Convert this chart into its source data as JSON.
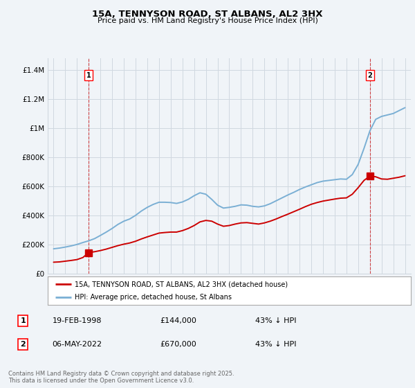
{
  "title": "15A, TENNYSON ROAD, ST ALBANS, AL2 3HX",
  "subtitle": "Price paid vs. HM Land Registry's House Price Index (HPI)",
  "ylabel_ticks": [
    "£0",
    "£200K",
    "£400K",
    "£600K",
    "£800K",
    "£1M",
    "£1.2M",
    "£1.4M"
  ],
  "ytick_values": [
    0,
    200000,
    400000,
    600000,
    800000,
    1000000,
    1200000,
    1400000
  ],
  "ylim": [
    0,
    1480000
  ],
  "xlim_start": 1994.5,
  "xlim_end": 2025.5,
  "sale1_date": "19-FEB-1998",
  "sale1_price": 144000,
  "sale1_hpi_text": "43% ↓ HPI",
  "sale2_date": "06-MAY-2022",
  "sale2_price": 670000,
  "sale2_hpi_text": "43% ↓ HPI",
  "legend_line1": "15A, TENNYSON ROAD, ST ALBANS, AL2 3HX (detached house)",
  "legend_line2": "HPI: Average price, detached house, St Albans",
  "footer": "Contains HM Land Registry data © Crown copyright and database right 2025.\nThis data is licensed under the Open Government Licence v3.0.",
  "line_color_red": "#cc0000",
  "line_color_blue": "#7aafd4",
  "background_color": "#f0f4f8",
  "grid_color": "#d0d8e0",
  "hpi_line": {
    "x": [
      1995.0,
      1995.5,
      1996.0,
      1996.5,
      1997.0,
      1997.5,
      1998.0,
      1998.5,
      1999.0,
      1999.5,
      2000.0,
      2000.5,
      2001.0,
      2001.5,
      2002.0,
      2002.5,
      2003.0,
      2003.5,
      2004.0,
      2004.5,
      2005.0,
      2005.5,
      2006.0,
      2006.5,
      2007.0,
      2007.5,
      2008.0,
      2008.5,
      2009.0,
      2009.5,
      2010.0,
      2010.5,
      2011.0,
      2011.5,
      2012.0,
      2012.5,
      2013.0,
      2013.5,
      2014.0,
      2014.5,
      2015.0,
      2015.5,
      2016.0,
      2016.5,
      2017.0,
      2017.5,
      2018.0,
      2018.5,
      2019.0,
      2019.5,
      2020.0,
      2020.5,
      2021.0,
      2021.5,
      2022.0,
      2022.5,
      2023.0,
      2023.5,
      2024.0,
      2024.5,
      2025.0
    ],
    "y": [
      170000,
      175000,
      182000,
      190000,
      200000,
      213000,
      225000,
      240000,
      262000,
      285000,
      310000,
      338000,
      360000,
      375000,
      400000,
      430000,
      455000,
      475000,
      490000,
      490000,
      488000,
      482000,
      492000,
      510000,
      535000,
      555000,
      545000,
      510000,
      470000,
      450000,
      455000,
      462000,
      472000,
      470000,
      462000,
      458000,
      465000,
      480000,
      500000,
      520000,
      540000,
      558000,
      578000,
      595000,
      610000,
      625000,
      635000,
      640000,
      645000,
      650000,
      648000,
      680000,
      750000,
      860000,
      980000,
      1060000,
      1080000,
      1090000,
      1100000,
      1120000,
      1140000
    ]
  },
  "price_line": {
    "x": [
      1995.0,
      1995.5,
      1996.0,
      1996.5,
      1997.0,
      1997.5,
      1998.0,
      1998.5,
      1999.0,
      1999.5,
      2000.0,
      2000.5,
      2001.0,
      2001.5,
      2002.0,
      2002.5,
      2003.0,
      2003.5,
      2004.0,
      2004.5,
      2005.0,
      2005.5,
      2006.0,
      2006.5,
      2007.0,
      2007.5,
      2008.0,
      2008.5,
      2009.0,
      2009.5,
      2010.0,
      2010.5,
      2011.0,
      2011.5,
      2012.0,
      2012.5,
      2013.0,
      2013.5,
      2014.0,
      2014.5,
      2015.0,
      2015.5,
      2016.0,
      2016.5,
      2017.0,
      2017.5,
      2018.0,
      2018.5,
      2019.0,
      2019.5,
      2020.0,
      2020.5,
      2021.0,
      2021.5,
      2022.0,
      2022.5,
      2023.0,
      2023.5,
      2024.0,
      2024.5,
      2025.0
    ],
    "y": [
      78000,
      80000,
      85000,
      90000,
      96000,
      110000,
      144000,
      150000,
      158000,
      168000,
      180000,
      192000,
      202000,
      210000,
      222000,
      238000,
      252000,
      265000,
      278000,
      282000,
      285000,
      285000,
      295000,
      310000,
      330000,
      355000,
      365000,
      360000,
      340000,
      325000,
      330000,
      340000,
      348000,
      350000,
      345000,
      340000,
      348000,
      360000,
      375000,
      392000,
      408000,
      425000,
      442000,
      460000,
      476000,
      488000,
      498000,
      505000,
      512000,
      518000,
      520000,
      545000,
      590000,
      640000,
      670000,
      665000,
      650000,
      648000,
      655000,
      662000,
      672000
    ]
  },
  "sale_points": [
    {
      "year": 1998.0,
      "price": 144000,
      "label": "1"
    },
    {
      "year": 2022.0,
      "price": 670000,
      "label": "2"
    }
  ]
}
